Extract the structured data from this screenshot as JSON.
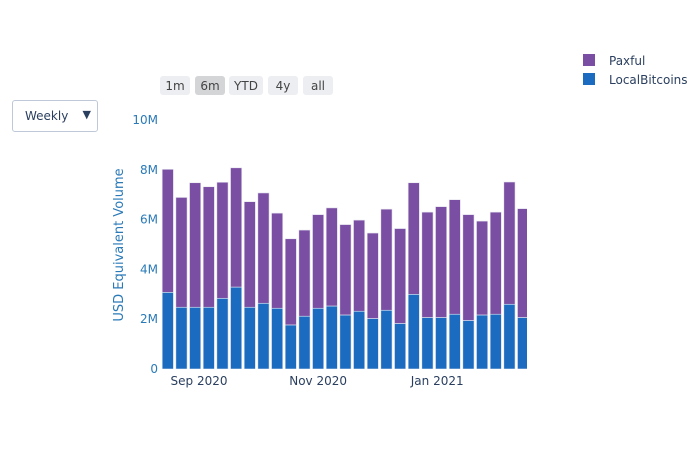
{
  "dropdown": {
    "selected": "Weekly",
    "arrow": "▼"
  },
  "range_buttons": [
    {
      "label": "1m",
      "active": false
    },
    {
      "label": "6m",
      "active": true
    },
    {
      "label": "YTD",
      "active": false
    },
    {
      "label": "4y",
      "active": false
    },
    {
      "label": "all",
      "active": false
    }
  ],
  "chart_data": {
    "type": "bar",
    "barmode": "stack",
    "ylabel": "USD Equivalent Volume",
    "ylim": [
      0,
      10000000
    ],
    "yticks": [
      {
        "v": 0,
        "label": "0"
      },
      {
        "v": 2000000,
        "label": "2M"
      },
      {
        "v": 4000000,
        "label": "4M"
      },
      {
        "v": 6000000,
        "label": "6M"
      },
      {
        "v": 8000000,
        "label": "8M"
      },
      {
        "v": 10000000,
        "label": "10M"
      }
    ],
    "xlim": [
      "2020-08-12",
      "2021-02-16"
    ],
    "xticks": [
      {
        "date": "2020-09-01",
        "label": "Sep 2020"
      },
      {
        "date": "2020-11-01",
        "label": "Nov 2020"
      },
      {
        "date": "2021-01-01",
        "label": "Jan 2021"
      }
    ],
    "legend_position": "top-right",
    "x": [
      "2020-08-16",
      "2020-08-23",
      "2020-08-30",
      "2020-09-06",
      "2020-09-13",
      "2020-09-20",
      "2020-09-27",
      "2020-10-04",
      "2020-10-11",
      "2020-10-18",
      "2020-10-25",
      "2020-11-01",
      "2020-11-08",
      "2020-11-15",
      "2020-11-22",
      "2020-11-29",
      "2020-12-06",
      "2020-12-13",
      "2020-12-20",
      "2020-12-27",
      "2021-01-03",
      "2021-01-10",
      "2021-01-17",
      "2021-01-24",
      "2021-01-31",
      "2021-02-07",
      "2021-02-14"
    ],
    "series": [
      {
        "name": "LocalBitcoins",
        "color": "#1b6bc0",
        "values": [
          3080000,
          2480000,
          2480000,
          2480000,
          2840000,
          3290000,
          2480000,
          2640000,
          2440000,
          1770000,
          2120000,
          2440000,
          2530000,
          2170000,
          2320000,
          2030000,
          2360000,
          1830000,
          3000000,
          2070000,
          2070000,
          2200000,
          1950000,
          2170000,
          2200000,
          2600000,
          2070000
        ]
      },
      {
        "name": "Paxful",
        "color": "#7a4ea3",
        "values": [
          4940000,
          4410000,
          5000000,
          4840000,
          4660000,
          4790000,
          4240000,
          4430000,
          3820000,
          3460000,
          3460000,
          3760000,
          3940000,
          3630000,
          3660000,
          3430000,
          4060000,
          3810000,
          4480000,
          4230000,
          4450000,
          4600000,
          4250000,
          3770000,
          4100000,
          4910000,
          4370000
        ]
      }
    ]
  }
}
